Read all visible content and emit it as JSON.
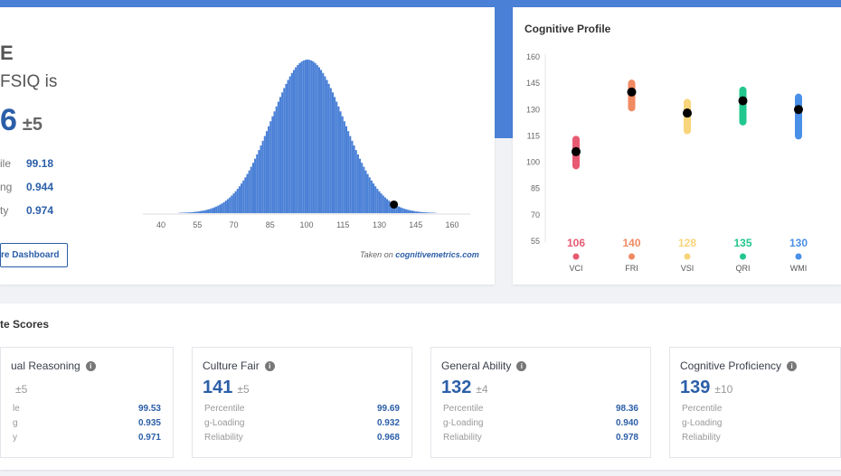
{
  "header": {
    "title_fragment": "E",
    "subtitle_fragment": "FSIQ is",
    "score_fragment": "6",
    "score_pm": "±5",
    "stats": [
      {
        "label": "ile",
        "value": "99.18"
      },
      {
        "label": "ng",
        "value": "0.944"
      },
      {
        "label": "ty",
        "value": "0.974"
      }
    ],
    "button": "re Dashboard",
    "credit_prefix": "Taken on",
    "credit_site": "cognitivemetrics.com"
  },
  "bell_chart": {
    "type": "histogram",
    "x_ticks": [
      40,
      55,
      70,
      85,
      100,
      115,
      130,
      145,
      160
    ],
    "mean": 100,
    "sd": 15,
    "marker": 136,
    "color": "#4a80d6"
  },
  "profile": {
    "title": "Cognitive Profile",
    "y_ticks": [
      160,
      145,
      130,
      115,
      100,
      85,
      70,
      55
    ],
    "chart_data": {
      "type": "scatter",
      "ylim": [
        55,
        160
      ],
      "categories": [
        "VCI",
        "FRI",
        "VSI",
        "QRI",
        "WMI"
      ],
      "values": [
        106,
        140,
        128,
        135,
        130
      ],
      "ranges": [
        [
          98,
          113
        ],
        [
          131,
          145
        ],
        [
          118,
          134
        ],
        [
          123,
          141
        ],
        [
          115,
          137
        ]
      ],
      "colors": [
        "#e85a72",
        "#f08a62",
        "#f8d47a",
        "#22c78d",
        "#4a8fe8"
      ]
    },
    "labels": [
      "106",
      "140",
      "128",
      "135",
      "130"
    ]
  },
  "composite": {
    "title": "te Scores",
    "cards": [
      {
        "name": "ual Reasoning",
        "score": "",
        "pm": "±5",
        "rows": [
          [
            "le",
            "99.53"
          ],
          [
            "g",
            "0.935"
          ],
          [
            "y",
            "0.971"
          ]
        ]
      },
      {
        "name": "Culture Fair",
        "score": "141",
        "pm": "±5",
        "rows": [
          [
            "Percentile",
            "99.69"
          ],
          [
            "g-Loading",
            "0.932"
          ],
          [
            "Reliability",
            "0.968"
          ]
        ]
      },
      {
        "name": "General Ability",
        "score": "132",
        "pm": "±4",
        "rows": [
          [
            "Percentile",
            "98.36"
          ],
          [
            "g-Loading",
            "0.940"
          ],
          [
            "Reliability",
            "0.978"
          ]
        ]
      },
      {
        "name": "Cognitive Proficiency",
        "score": "139",
        "pm": "±10",
        "rows": [
          [
            "Percentile",
            ""
          ],
          [
            "g-Loading",
            ""
          ],
          [
            "Reliability",
            ""
          ]
        ]
      }
    ]
  }
}
